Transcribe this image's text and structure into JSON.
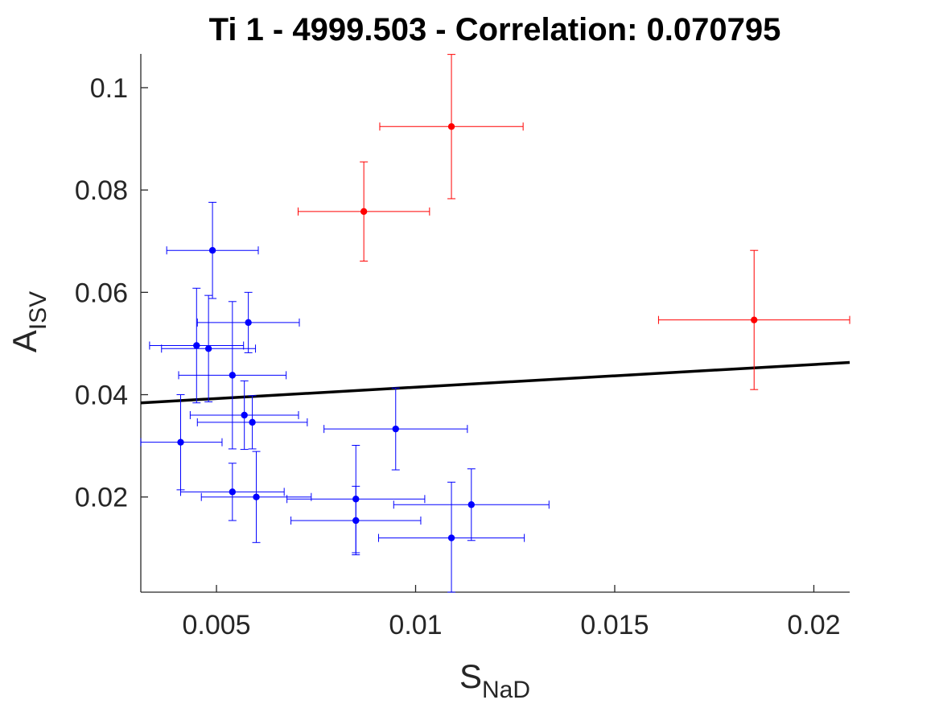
{
  "chart_data": {
    "type": "scatter",
    "title": "Ti 1 - 4999.503 - Correlation: 0.070795",
    "xlabel": {
      "main": "S",
      "sub": "NaD"
    },
    "ylabel": {
      "main": "A",
      "sub": "ISV"
    },
    "xlim": [
      0.0031,
      0.0209
    ],
    "ylim": [
      0.0014,
      0.1066
    ],
    "xticks": [
      0.005,
      0.01,
      0.015,
      0.02
    ],
    "xtick_labels": [
      "0.005",
      "0.01",
      "0.015",
      "0.02"
    ],
    "yticks": [
      0.02,
      0.04,
      0.06,
      0.08,
      0.1
    ],
    "ytick_labels": [
      "0.02",
      "0.04",
      "0.06",
      "0.08",
      "0.1"
    ],
    "grid": false,
    "fit_line": {
      "x": [
        0.0031,
        0.0209
      ],
      "y": [
        0.0384,
        0.0463
      ],
      "color": "#000000"
    },
    "series": [
      {
        "color": "#0000ff",
        "points": [
          {
            "x": 0.0049,
            "y": 0.0682,
            "xerr": 0.00115,
            "yerr": 0.0094
          },
          {
            "x": 0.0058,
            "y": 0.0541,
            "xerr": 0.00128,
            "yerr": 0.0059
          },
          {
            "x": 0.0045,
            "y": 0.0496,
            "xerr": 0.00118,
            "yerr": 0.0112
          },
          {
            "x": 0.0048,
            "y": 0.049,
            "xerr": 0.00118,
            "yerr": 0.0104
          },
          {
            "x": 0.0054,
            "y": 0.0438,
            "xerr": 0.00135,
            "yerr": 0.0144
          },
          {
            "x": 0.0057,
            "y": 0.036,
            "xerr": 0.00136,
            "yerr": 0.0067
          },
          {
            "x": 0.0059,
            "y": 0.0346,
            "xerr": 0.00138,
            "yerr": 0.0052
          },
          {
            "x": 0.0041,
            "y": 0.0307,
            "xerr": 0.00104,
            "yerr": 0.0093
          },
          {
            "x": 0.0095,
            "y": 0.0333,
            "xerr": 0.0018,
            "yerr": 0.008
          },
          {
            "x": 0.0054,
            "y": 0.021,
            "xerr": 0.0013,
            "yerr": 0.0056
          },
          {
            "x": 0.006,
            "y": 0.02,
            "xerr": 0.00138,
            "yerr": 0.0089
          },
          {
            "x": 0.0085,
            "y": 0.0196,
            "xerr": 0.00173,
            "yerr": 0.0105
          },
          {
            "x": 0.0085,
            "y": 0.0154,
            "xerr": 0.00163,
            "yerr": 0.0067
          },
          {
            "x": 0.0114,
            "y": 0.0185,
            "xerr": 0.00195,
            "yerr": 0.007
          },
          {
            "x": 0.0109,
            "y": 0.012,
            "xerr": 0.00183,
            "yerr": 0.0109
          }
        ]
      },
      {
        "color": "#ff0000",
        "points": [
          {
            "x": 0.0087,
            "y": 0.0758,
            "xerr": 0.00165,
            "yerr": 0.0097
          },
          {
            "x": 0.0109,
            "y": 0.0924,
            "xerr": 0.0018,
            "yerr": 0.0141
          },
          {
            "x": 0.0185,
            "y": 0.0546,
            "xerr": 0.0024,
            "yerr": 0.0136
          }
        ]
      }
    ]
  }
}
